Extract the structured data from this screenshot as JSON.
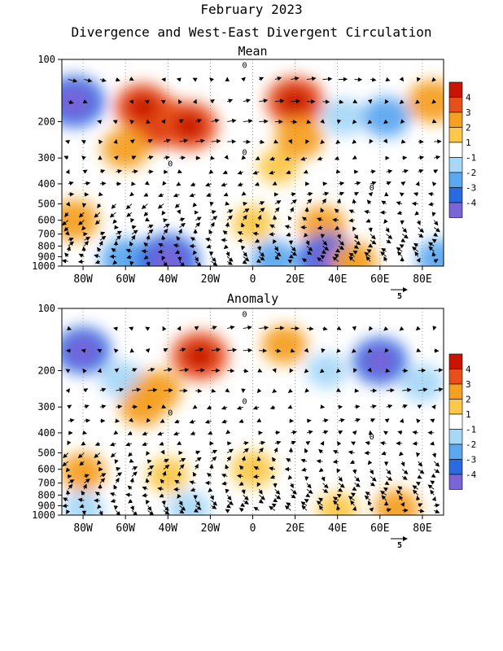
{
  "header": {
    "title": "February 2023",
    "subtitle": "Divergence and West-East Divergent Circulation"
  },
  "colors": {
    "pos4": "#c81400",
    "pos3": "#e8501a",
    "pos2": "#f5a021",
    "pos1": "#fbc84a",
    "zero": "#ffffff",
    "neg1": "#a8d8f8",
    "neg2": "#5ca8f0",
    "neg3": "#2a6ae0",
    "neg4": "#7a64d8"
  },
  "chart_data": [
    {
      "type": "heatmap",
      "title": "Mean",
      "x_ticks": [
        "80W",
        "60W",
        "40W",
        "20W",
        "0",
        "20E",
        "40E",
        "60E",
        "80E"
      ],
      "x_tick_values_deg": [
        -80,
        -60,
        -40,
        -20,
        0,
        20,
        40,
        60,
        80
      ],
      "xlim_deg": [
        -90,
        90
      ],
      "y_ticks": [
        "100",
        "200",
        "300",
        "400",
        "500",
        "600",
        "700",
        "800",
        "900",
        "1000"
      ],
      "y_tick_values_hpa": [
        100,
        200,
        300,
        400,
        500,
        600,
        700,
        800,
        900,
        1000
      ],
      "ylim_hpa": [
        1000,
        100
      ],
      "y_scale": "log",
      "legend": [
        "4",
        "3",
        "2",
        "1",
        "-1",
        "-2",
        "-3",
        "-4"
      ],
      "legend_placement": "right",
      "contour_label": "0",
      "vector_reference_label": "5",
      "cells": [
        {
          "lon": -84,
          "p": 160,
          "v": -3.5
        },
        {
          "lon": -45,
          "p": 200,
          "v": 3.8
        },
        {
          "lon": -52,
          "p": 170,
          "v": 3.0
        },
        {
          "lon": -30,
          "p": 210,
          "v": 3.2
        },
        {
          "lon": -60,
          "p": 270,
          "v": 2.2
        },
        {
          "lon": 12,
          "p": 330,
          "v": 1.5
        },
        {
          "lon": 20,
          "p": 160,
          "v": 3.3
        },
        {
          "lon": 22,
          "p": 240,
          "v": 2.3
        },
        {
          "lon": 43,
          "p": 190,
          "v": -1.8
        },
        {
          "lon": 63,
          "p": 190,
          "v": -2.2
        },
        {
          "lon": 85,
          "p": 160,
          "v": 2.5
        },
        {
          "lon": -84,
          "p": 600,
          "v": 2.3
        },
        {
          "lon": 0,
          "p": 620,
          "v": 1.6
        },
        {
          "lon": 33,
          "p": 640,
          "v": 2.2
        },
        {
          "lon": -60,
          "p": 930,
          "v": -2.5
        },
        {
          "lon": -40,
          "p": 940,
          "v": -3.8
        },
        {
          "lon": 10,
          "p": 930,
          "v": -2.0
        },
        {
          "lon": 35,
          "p": 920,
          "v": -3.5
        },
        {
          "lon": 48,
          "p": 950,
          "v": 2.0
        },
        {
          "lon": 88,
          "p": 920,
          "v": -2.0
        }
      ]
    },
    {
      "type": "heatmap",
      "title": "Anomaly",
      "x_ticks": [
        "80W",
        "60W",
        "40W",
        "20W",
        "0",
        "20E",
        "40E",
        "60E",
        "80E"
      ],
      "x_tick_values_deg": [
        -80,
        -60,
        -40,
        -20,
        0,
        20,
        40,
        60,
        80
      ],
      "xlim_deg": [
        -90,
        90
      ],
      "y_ticks": [
        "100",
        "200",
        "300",
        "400",
        "500",
        "600",
        "700",
        "800",
        "900",
        "1000"
      ],
      "y_tick_values_hpa": [
        100,
        200,
        300,
        400,
        500,
        600,
        700,
        800,
        900,
        1000
      ],
      "ylim_hpa": [
        1000,
        100
      ],
      "y_scale": "log",
      "legend": [
        "4",
        "3",
        "2",
        "1",
        "-1",
        "-2",
        "-3",
        "-4"
      ],
      "legend_placement": "right",
      "contour_label": "0",
      "vector_reference_label": "5",
      "cells": [
        {
          "lon": -80,
          "p": 160,
          "v": -3.0
        },
        {
          "lon": -62,
          "p": 220,
          "v": -1.8
        },
        {
          "lon": -45,
          "p": 250,
          "v": 2.3
        },
        {
          "lon": -25,
          "p": 170,
          "v": 3.2
        },
        {
          "lon": -52,
          "p": 300,
          "v": 2.0
        },
        {
          "lon": 15,
          "p": 150,
          "v": 2.0
        },
        {
          "lon": 60,
          "p": 180,
          "v": -3.0
        },
        {
          "lon": 80,
          "p": 230,
          "v": -1.8
        },
        {
          "lon": 35,
          "p": 200,
          "v": -1.5
        },
        {
          "lon": -80,
          "p": 620,
          "v": 2.0
        },
        {
          "lon": -40,
          "p": 640,
          "v": 1.6
        },
        {
          "lon": 0,
          "p": 600,
          "v": 1.8
        },
        {
          "lon": -80,
          "p": 930,
          "v": -1.6
        },
        {
          "lon": -30,
          "p": 940,
          "v": -1.8
        },
        {
          "lon": 40,
          "p": 940,
          "v": 1.5
        },
        {
          "lon": 68,
          "p": 930,
          "v": 2.0
        }
      ]
    }
  ]
}
